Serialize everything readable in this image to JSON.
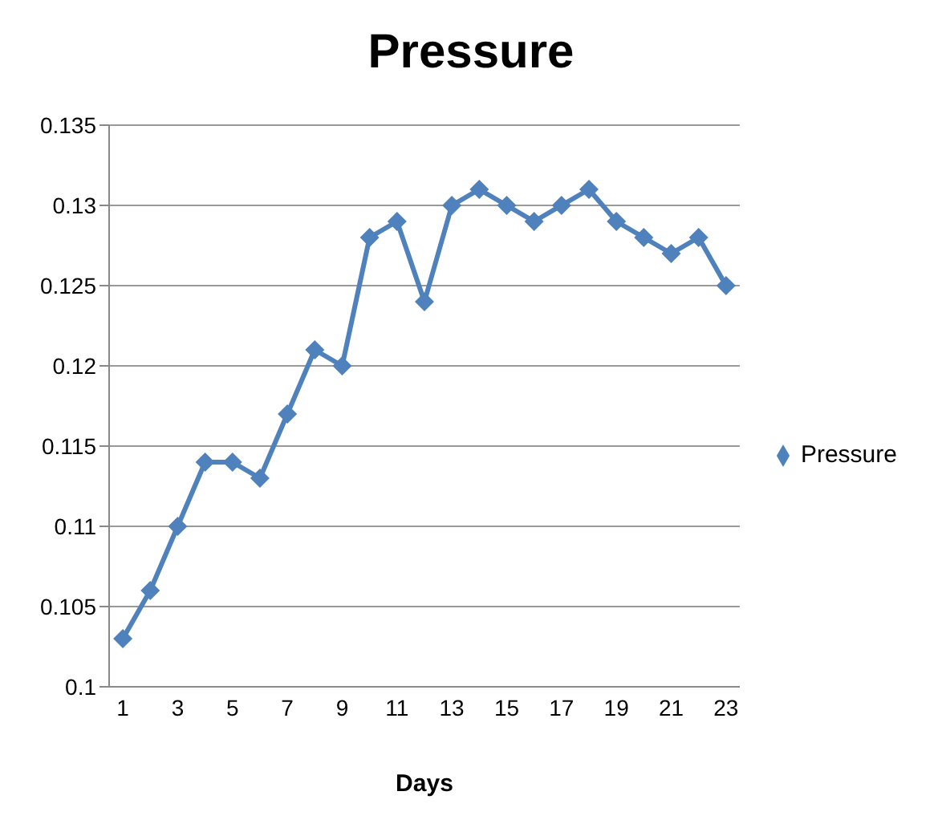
{
  "chart_data": {
    "type": "line",
    "title": "Pressure",
    "xlabel": "Days",
    "x": [
      1,
      2,
      3,
      4,
      5,
      6,
      7,
      8,
      9,
      10,
      11,
      12,
      13,
      14,
      15,
      16,
      17,
      18,
      19,
      20,
      21,
      22,
      23
    ],
    "series": [
      {
        "name": "Pressure",
        "color": "#4f81bd",
        "values": [
          0.103,
          0.106,
          0.11,
          0.114,
          0.114,
          0.113,
          0.117,
          0.121,
          0.12,
          0.128,
          0.129,
          0.124,
          0.13,
          0.131,
          0.13,
          0.129,
          0.13,
          0.131,
          0.129,
          0.128,
          0.127,
          0.128,
          0.125
        ]
      }
    ],
    "xlim": [
      0.5,
      23.5
    ],
    "xticks": [
      1,
      3,
      5,
      7,
      9,
      11,
      13,
      15,
      17,
      19,
      21,
      23
    ],
    "ylim": [
      0.1,
      0.135
    ],
    "yticks": [
      0.1,
      0.105,
      0.11,
      0.115,
      0.12,
      0.125,
      0.13,
      0.135
    ],
    "grid": "y",
    "legend": "right",
    "marker": "diamond",
    "line_style": "solid"
  }
}
